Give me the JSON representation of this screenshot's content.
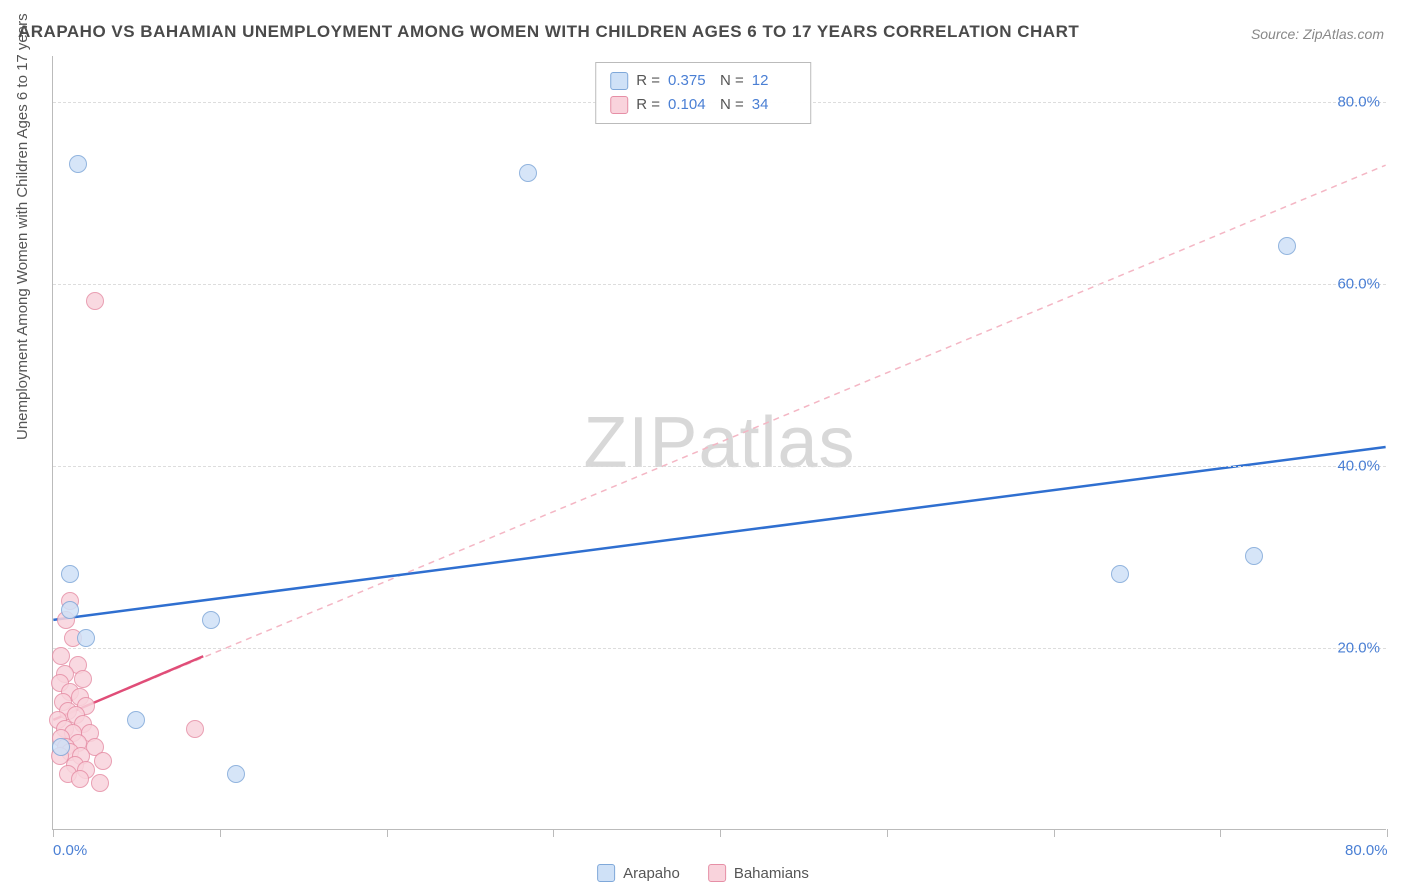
{
  "title": "ARAPAHO VS BAHAMIAN UNEMPLOYMENT AMONG WOMEN WITH CHILDREN AGES 6 TO 17 YEARS CORRELATION CHART",
  "source": "Source: ZipAtlas.com",
  "watermark_bold": "ZIP",
  "watermark_thin": "atlas",
  "y_axis_label": "Unemployment Among Women with Children Ages 6 to 17 years",
  "chart": {
    "type": "scatter",
    "xlim": [
      0,
      80
    ],
    "ylim": [
      0,
      85
    ],
    "x_ticks": [
      0,
      10,
      20,
      30,
      40,
      50,
      60,
      70,
      80
    ],
    "x_tick_labels_shown": {
      "0": "0.0%",
      "80": "80.0%"
    },
    "y_grid": [
      20,
      40,
      60,
      80
    ],
    "y_tick_labels": {
      "20": "20.0%",
      "40": "40.0%",
      "60": "60.0%",
      "80": "80.0%"
    },
    "background_color": "#ffffff",
    "grid_color": "#dddddd",
    "axis_color": "#bbbbbb",
    "tick_label_color": "#4a7fd4",
    "series": {
      "arapaho": {
        "label": "Arapaho",
        "fill": "#cfe1f7",
        "stroke": "#7fa8d9",
        "marker_radius": 9,
        "R": "0.375",
        "N": "12",
        "trend_solid": {
          "x1": 0,
          "y1": 23,
          "x2": 80,
          "y2": 42,
          "color": "#2f6fd0",
          "width": 2.5
        },
        "trend_dashed": {
          "x1": 0,
          "y1": 12,
          "x2": 80,
          "y2": 73,
          "color": "#f4b6c4",
          "width": 1.5,
          "dash": "6,5"
        },
        "points": [
          {
            "x": 1.5,
            "y": 73
          },
          {
            "x": 28.5,
            "y": 72
          },
          {
            "x": 74,
            "y": 64
          },
          {
            "x": 64,
            "y": 28
          },
          {
            "x": 72,
            "y": 30
          },
          {
            "x": 1.0,
            "y": 28
          },
          {
            "x": 9.5,
            "y": 23
          },
          {
            "x": 2.0,
            "y": 21
          },
          {
            "x": 1.0,
            "y": 24
          },
          {
            "x": 5.0,
            "y": 12
          },
          {
            "x": 11,
            "y": 6
          },
          {
            "x": 0.5,
            "y": 9
          }
        ]
      },
      "bahamians": {
        "label": "Bahamians",
        "fill": "#f9d3dc",
        "stroke": "#e68fa6",
        "marker_radius": 9,
        "R": "0.104",
        "N": "34",
        "trend_solid": {
          "x1": 0,
          "y1": 12,
          "x2": 9,
          "y2": 19,
          "color": "#e04d78",
          "width": 2.5
        },
        "points": [
          {
            "x": 2.5,
            "y": 58
          },
          {
            "x": 1.0,
            "y": 25
          },
          {
            "x": 0.8,
            "y": 23
          },
          {
            "x": 1.2,
            "y": 21
          },
          {
            "x": 0.5,
            "y": 19
          },
          {
            "x": 1.5,
            "y": 18
          },
          {
            "x": 0.7,
            "y": 17
          },
          {
            "x": 1.8,
            "y": 16.5
          },
          {
            "x": 0.4,
            "y": 16
          },
          {
            "x": 1.0,
            "y": 15
          },
          {
            "x": 1.6,
            "y": 14.5
          },
          {
            "x": 0.6,
            "y": 14
          },
          {
            "x": 2.0,
            "y": 13.5
          },
          {
            "x": 0.9,
            "y": 13
          },
          {
            "x": 1.4,
            "y": 12.5
          },
          {
            "x": 0.3,
            "y": 12
          },
          {
            "x": 1.8,
            "y": 11.5
          },
          {
            "x": 0.7,
            "y": 11
          },
          {
            "x": 1.2,
            "y": 10.5
          },
          {
            "x": 2.2,
            "y": 10.5
          },
          {
            "x": 0.5,
            "y": 10
          },
          {
            "x": 1.5,
            "y": 9.5
          },
          {
            "x": 0.8,
            "y": 9
          },
          {
            "x": 2.5,
            "y": 9
          },
          {
            "x": 1.0,
            "y": 8.5
          },
          {
            "x": 1.7,
            "y": 8
          },
          {
            "x": 0.4,
            "y": 8
          },
          {
            "x": 3.0,
            "y": 7.5
          },
          {
            "x": 1.3,
            "y": 7
          },
          {
            "x": 2.0,
            "y": 6.5
          },
          {
            "x": 0.9,
            "y": 6
          },
          {
            "x": 1.6,
            "y": 5.5
          },
          {
            "x": 8.5,
            "y": 11
          },
          {
            "x": 2.8,
            "y": 5
          }
        ]
      }
    }
  },
  "stats_labels": {
    "R": "R =",
    "N": "N ="
  }
}
